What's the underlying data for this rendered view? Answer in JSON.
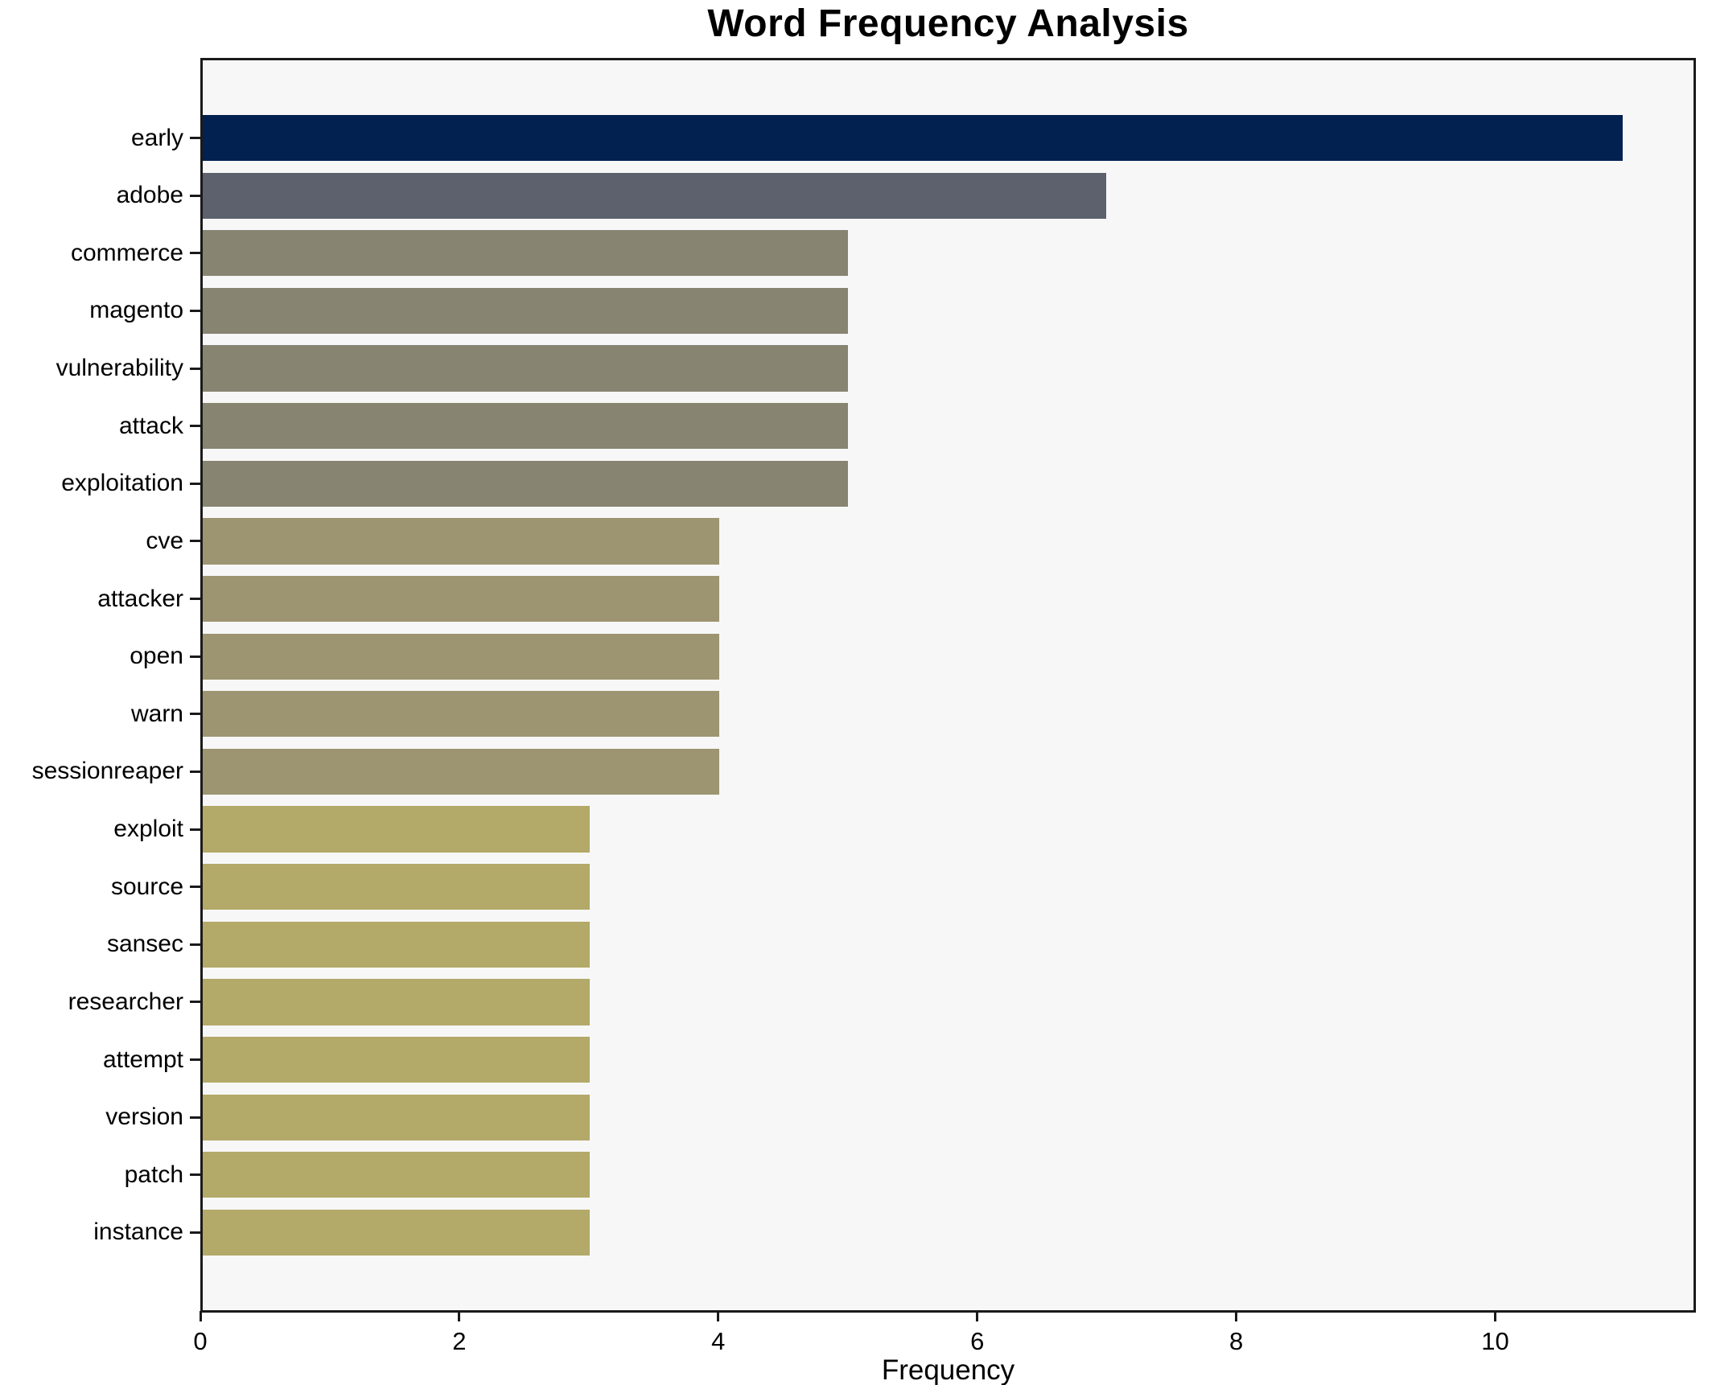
{
  "chart_data": {
    "type": "bar",
    "orientation": "horizontal",
    "title": "Word Frequency Analysis",
    "xlabel": "Frequency",
    "ylabel": "",
    "categories": [
      "early",
      "adobe",
      "commerce",
      "magento",
      "vulnerability",
      "attack",
      "exploitation",
      "cve",
      "attacker",
      "open",
      "warn",
      "sessionreaper",
      "exploit",
      "source",
      "sansec",
      "researcher",
      "attempt",
      "version",
      "patch",
      "instance"
    ],
    "values": [
      11,
      7,
      5,
      5,
      5,
      5,
      5,
      4,
      4,
      4,
      4,
      4,
      3,
      3,
      3,
      3,
      3,
      3,
      3,
      3
    ],
    "bar_colors": [
      "#032150",
      "#5d616e",
      "#878572",
      "#878572",
      "#878572",
      "#878572",
      "#878572",
      "#9d9571",
      "#9d9571",
      "#9d9571",
      "#9d9571",
      "#9d9571",
      "#b3a969",
      "#b3a969",
      "#b3a969",
      "#b3a969",
      "#b3a969",
      "#b3a969",
      "#b3a969",
      "#b3a969"
    ],
    "value_color_map": {
      "11": "#032150",
      "7": "#5d616e",
      "5": "#878572",
      "4": "#9d9571",
      "3": "#b3a969"
    },
    "xticks": [
      "0",
      "2",
      "4",
      "6",
      "8",
      "10"
    ],
    "xtick_values": [
      0,
      2,
      4,
      6,
      8,
      10
    ],
    "xlim": [
      0,
      11.55
    ],
    "grid": false,
    "legend": null,
    "plot_background": "#f7f7f7",
    "figure_background": "#ffffff",
    "spine_color": "#1a1a1a",
    "title_color": "#000000",
    "tick_label_color": "#000000"
  }
}
